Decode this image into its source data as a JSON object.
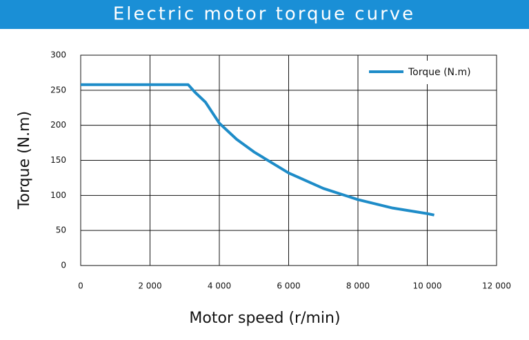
{
  "chart_data": {
    "type": "line",
    "title": "Electric motor torque curve",
    "x_label": "Motor speed (r/min)",
    "y_label": "Torque (N.m)",
    "x": [
      0,
      3100,
      3300,
      3600,
      4000,
      4500,
      5000,
      6000,
      7000,
      8000,
      9000,
      10000,
      10200
    ],
    "series": [
      {
        "name": "Torque (N.m)",
        "color": "#1e8cc8",
        "values": [
          258,
          258,
          247,
          233,
          203,
          180,
          162,
          132,
          110,
          94,
          82,
          74,
          72
        ]
      }
    ],
    "xlim": [
      0,
      12000
    ],
    "xticks": [
      0,
      {
        "value": 2000,
        "label": "2 000"
      },
      {
        "value": 4000,
        "label": "4 000"
      },
      {
        "value": 6000,
        "label": "6 000"
      },
      {
        "value": 8000,
        "label": "8 000"
      },
      {
        "value": 10000,
        "label": "10 000"
      },
      {
        "value": 12000,
        "label": "12 000"
      }
    ],
    "ylim": [
      0,
      300
    ],
    "yticks": [
      0,
      50,
      100,
      150,
      200,
      250,
      300
    ],
    "grid": true,
    "legend": "upper right",
    "title_background": "#1a8fd6"
  }
}
